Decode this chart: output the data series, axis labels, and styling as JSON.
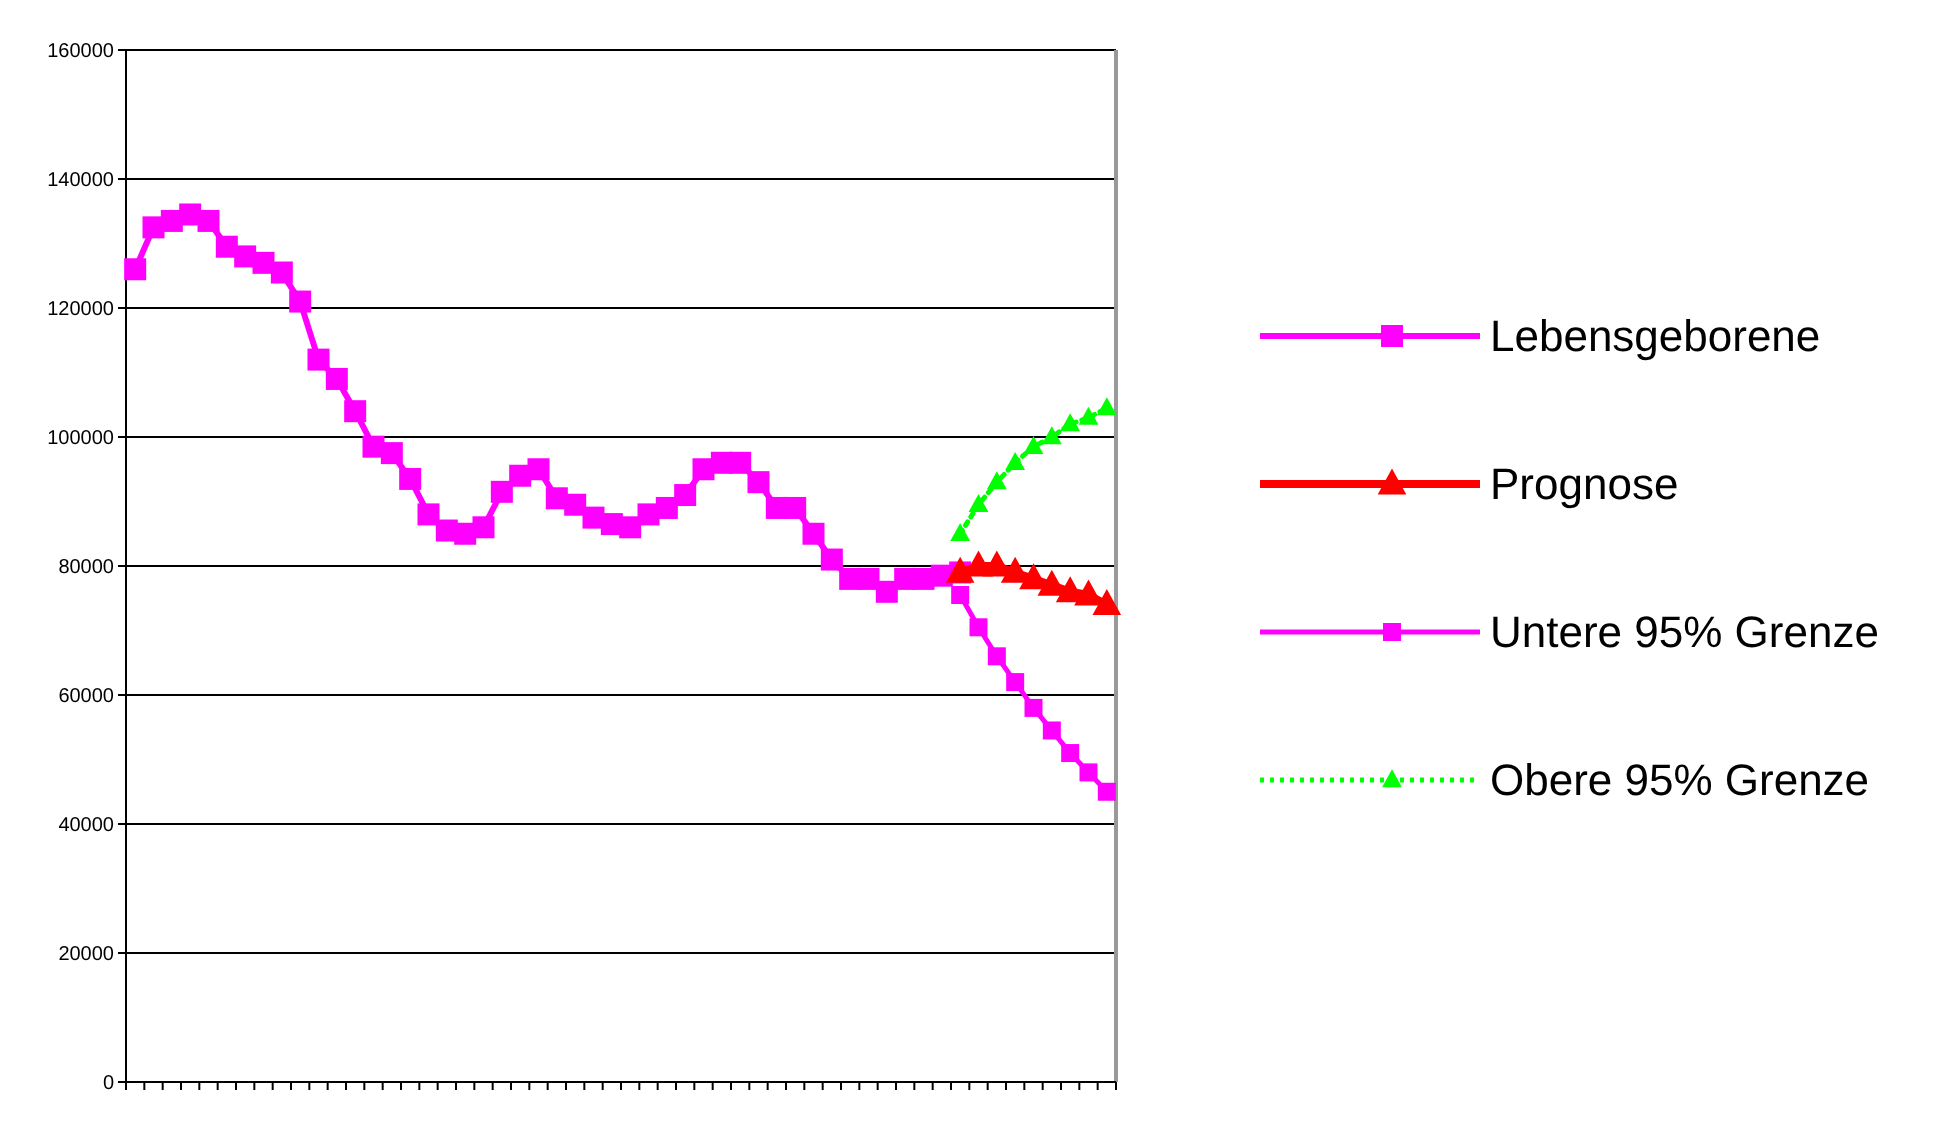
{
  "chart_data": {
    "type": "line",
    "categories": [
      null,
      null,
      null,
      null,
      null,
      null,
      null,
      null,
      null,
      null,
      null,
      null,
      null,
      null,
      null,
      null,
      null,
      null,
      null,
      null,
      null,
      null,
      null,
      null,
      null,
      null,
      null,
      null,
      null,
      null,
      null,
      null,
      null,
      null,
      null,
      null,
      null,
      null,
      null,
      null,
      null,
      null,
      null,
      null,
      null,
      null,
      null,
      null,
      null,
      null,
      null,
      null,
      null,
      null
    ],
    "series": [
      {
        "name": "Lebensgeborene",
        "color": "#ff00ff",
        "marker": "square",
        "line_style": "solid",
        "values": [
          126000,
          132500,
          133500,
          134500,
          133500,
          129500,
          128000,
          127000,
          125500,
          121000,
          112000,
          109000,
          104000,
          98500,
          97500,
          93500,
          88000,
          85500,
          85000,
          86000,
          91500,
          94000,
          95000,
          90500,
          89500,
          87500,
          86500,
          86000,
          88000,
          89000,
          91000,
          95000,
          96000,
          96000,
          93000,
          89000,
          89000,
          85000,
          81000,
          78000,
          78000,
          76000,
          78000,
          78000,
          78500,
          79000,
          null,
          null,
          null,
          null,
          null,
          null,
          null,
          null
        ]
      },
      {
        "name": "Prognose",
        "color": "#ff0000",
        "marker": "triangle",
        "line_style": "solid",
        "values": [
          null,
          null,
          null,
          null,
          null,
          null,
          null,
          null,
          null,
          null,
          null,
          null,
          null,
          null,
          null,
          null,
          null,
          null,
          null,
          null,
          null,
          null,
          null,
          null,
          null,
          null,
          null,
          null,
          null,
          null,
          null,
          null,
          null,
          null,
          null,
          null,
          null,
          null,
          null,
          null,
          null,
          null,
          null,
          null,
          null,
          79000,
          80000,
          80000,
          79000,
          78000,
          77000,
          76000,
          75500,
          74000
        ]
      },
      {
        "name": "Untere 95% Grenze",
        "color": "#ff00ff",
        "marker": "square",
        "line_style": "solid",
        "values": [
          null,
          null,
          null,
          null,
          null,
          null,
          null,
          null,
          null,
          null,
          null,
          null,
          null,
          null,
          null,
          null,
          null,
          null,
          null,
          null,
          null,
          null,
          null,
          null,
          null,
          null,
          null,
          null,
          null,
          null,
          null,
          null,
          null,
          null,
          null,
          null,
          null,
          null,
          null,
          null,
          null,
          null,
          null,
          null,
          null,
          75500,
          70500,
          66000,
          62000,
          58000,
          54500,
          51000,
          48000,
          45000
        ]
      },
      {
        "name": "Obere 95% Grenze",
        "color": "#00ff00",
        "marker": "triangle",
        "line_style": "dotted",
        "values": [
          null,
          null,
          null,
          null,
          null,
          null,
          null,
          null,
          null,
          null,
          null,
          null,
          null,
          null,
          null,
          null,
          null,
          null,
          null,
          null,
          null,
          null,
          null,
          null,
          null,
          null,
          null,
          null,
          null,
          null,
          null,
          null,
          null,
          null,
          null,
          null,
          null,
          null,
          null,
          null,
          null,
          null,
          null,
          null,
          null,
          85000,
          89500,
          93000,
          96000,
          98500,
          100000,
          102000,
          103000,
          104500
        ]
      }
    ],
    "ylim": [
      0,
      160000
    ],
    "yticks": [
      0,
      20000,
      40000,
      60000,
      80000,
      100000,
      120000,
      140000,
      160000
    ],
    "grid": "y",
    "legend": "right"
  }
}
